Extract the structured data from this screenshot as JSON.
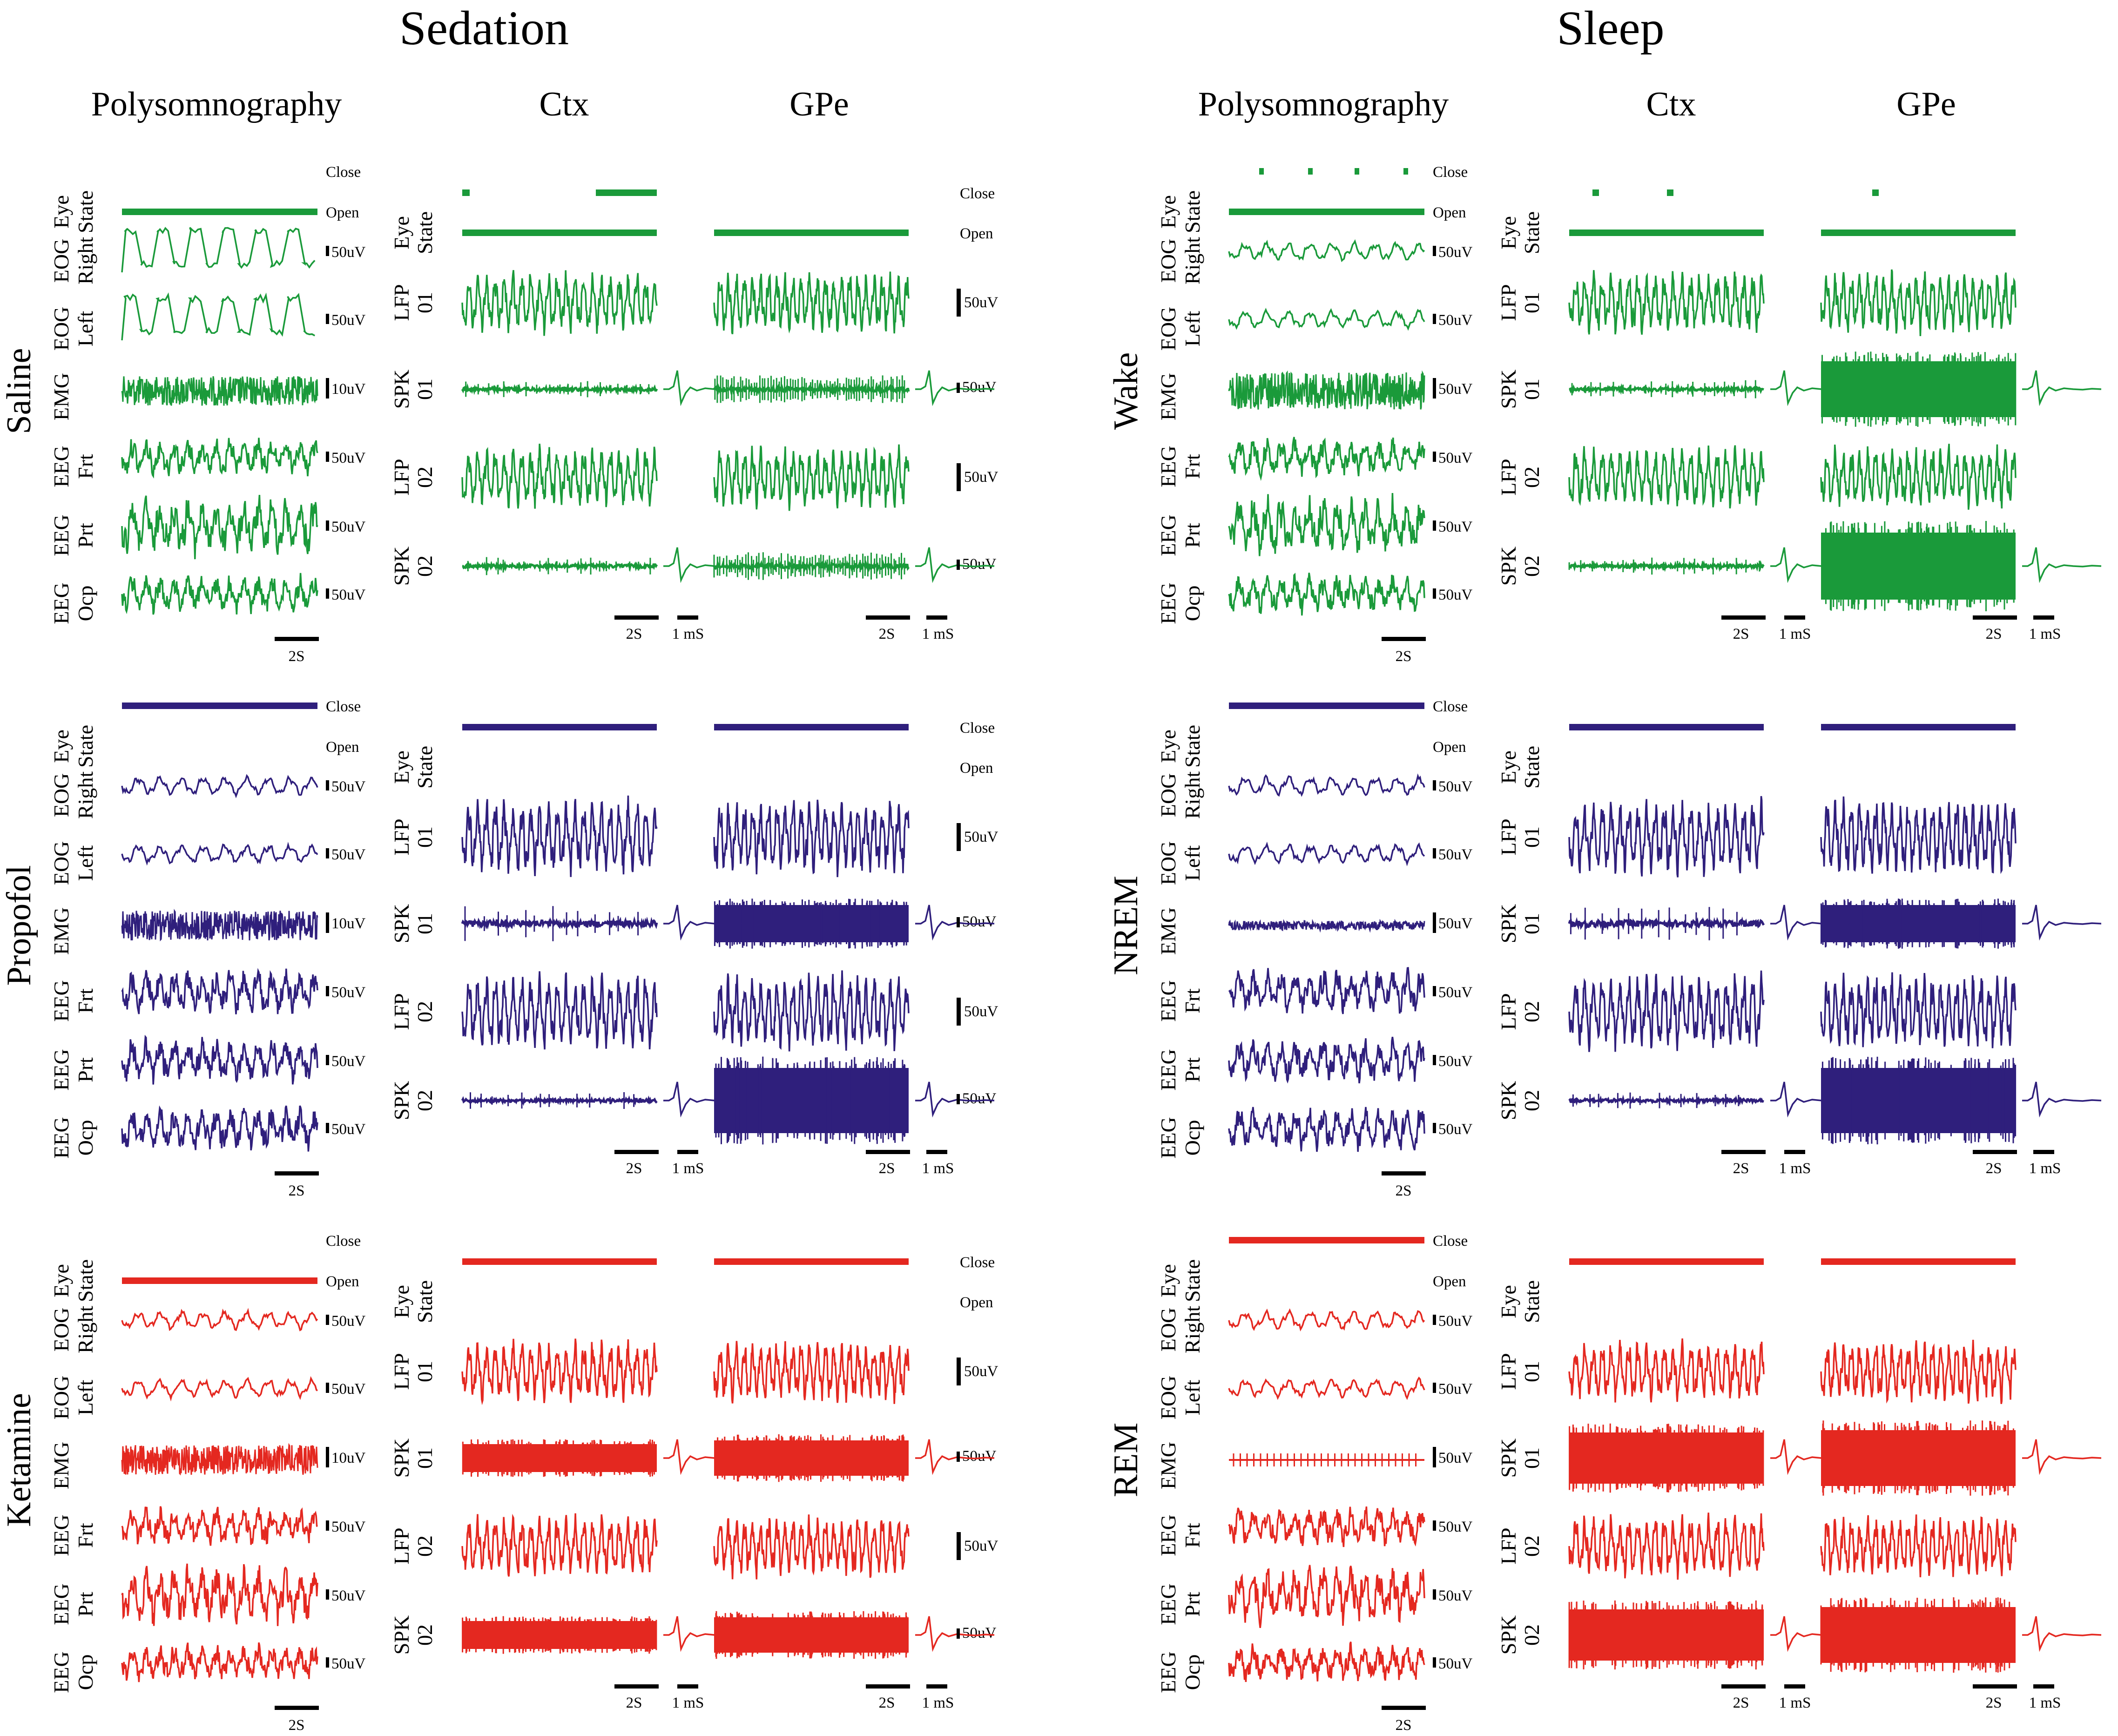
{
  "sections": [
    {
      "title": "Sedation",
      "columns": [
        "Polysomnography",
        "Ctx",
        "GPe"
      ],
      "rows": [
        {
          "label": "Saline",
          "color": "#1a9a3a"
        },
        {
          "label": "Propofol",
          "color": "#2f1f7c"
        },
        {
          "label": "Ketamine",
          "color": "#e42820"
        }
      ]
    },
    {
      "title": "Sleep",
      "columns": [
        "Polysomnography",
        "Ctx",
        "GPe"
      ],
      "rows": [
        {
          "label": "Wake",
          "color": "#1a9a3a"
        },
        {
          "label": "NREM",
          "color": "#2f1f7c"
        },
        {
          "label": "REM",
          "color": "#e42820"
        }
      ]
    }
  ],
  "psg_channels": [
    {
      "top": "Eye",
      "bottom": "State",
      "scale": ""
    },
    {
      "top": "EOG",
      "bottom": "Right",
      "scale": "50uV"
    },
    {
      "top": "EOG",
      "bottom": "Left",
      "scale": "50uV"
    },
    {
      "top": "EMG",
      "bottom": "",
      "scale": "10uV"
    },
    {
      "top": "EEG",
      "bottom": "Frt",
      "scale": "50uV"
    },
    {
      "top": "EEG",
      "bottom": "Prt",
      "scale": "50uV"
    },
    {
      "top": "EEG",
      "bottom": "Ocp",
      "scale": "50uV"
    }
  ],
  "emg_scale_sleep": "50uV",
  "neural_channels": [
    {
      "top": "Eye",
      "bottom": "State"
    },
    {
      "top": "LFP",
      "bottom": "01"
    },
    {
      "top": "SPK",
      "bottom": "01"
    },
    {
      "top": "LFP",
      "bottom": "02"
    },
    {
      "top": "SPK",
      "bottom": "02"
    }
  ],
  "eye_state": {
    "close": "Close",
    "open": "Open"
  },
  "neural_scale": "50uV",
  "time_scale": "2S",
  "waveform_scale": "1 mS"
}
